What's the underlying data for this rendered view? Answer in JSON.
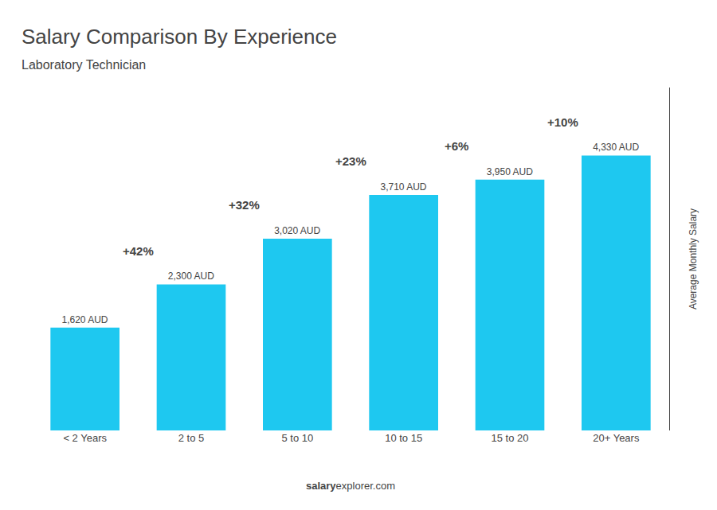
{
  "chart_data": {
    "type": "bar",
    "title": "Salary Comparison By Experience",
    "subtitle": "Laboratory Technician",
    "categories": [
      "< 2 Years",
      "2 to 5",
      "5 to 10",
      "10 to 15",
      "15 to 20",
      "20+ Years"
    ],
    "values": [
      1620,
      2300,
      3020,
      3710,
      3950,
      4330
    ],
    "value_labels": [
      "1,620 AUD",
      "2,300 AUD",
      "3,020 AUD",
      "3,710 AUD",
      "3,950 AUD",
      "4,330 AUD"
    ],
    "data_labels": true,
    "color": "#1EC8F0",
    "annotations": [
      "+42%",
      "+32%",
      "+23%",
      "+6%",
      "+10%"
    ],
    "ylabel": "Average Monthly Salary",
    "footer": [
      "salary",
      "explorer.com"
    ],
    "ylim": [
      0,
      5400
    ],
    "yticks": [],
    "tick_labels": "x",
    "grid": false
  }
}
